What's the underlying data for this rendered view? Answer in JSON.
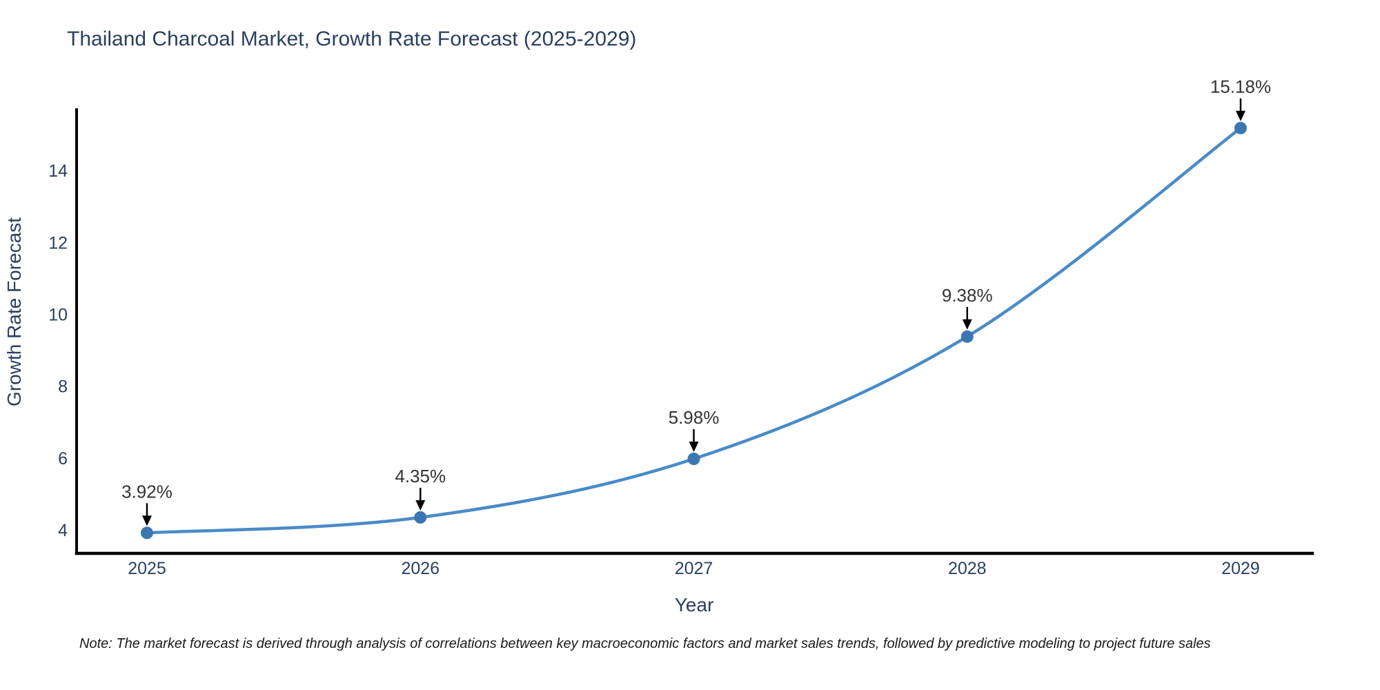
{
  "page": {
    "background": "#ffffff"
  },
  "chart_data": {
    "type": "line",
    "title": "Thailand Charcoal Market, Growth Rate Forecast (2025-2029)",
    "xlabel": "Year",
    "ylabel": "Growth Rate Forecast",
    "categories": [
      "2025",
      "2026",
      "2027",
      "2028",
      "2029"
    ],
    "series": [
      {
        "name": "Growth Rate Forecast",
        "values": [
          3.92,
          4.35,
          5.98,
          9.38,
          15.18
        ]
      }
    ],
    "point_labels": [
      "3.92%",
      "4.35%",
      "5.98%",
      "9.38%",
      "15.18%"
    ],
    "yticks": [
      4,
      6,
      8,
      10,
      12,
      14
    ],
    "ylim": [
      3.35,
      15.69
    ],
    "line_shape": "spline",
    "grid": false,
    "legend_position": "none",
    "colors": {
      "line": "#4a8bc7",
      "marker": "#3c76b1",
      "axis_line": "#000000",
      "tick_text": "#2a3f5f",
      "title_text": "#2a3f5f",
      "annotation_text": "#333333",
      "arrow": "#000000",
      "background": "#ffffff"
    }
  },
  "note": {
    "text": "Note: The market forecast is derived through analysis of correlations between key macroeconomic factors and market sales trends, followed by predictive modeling to project future sales"
  }
}
